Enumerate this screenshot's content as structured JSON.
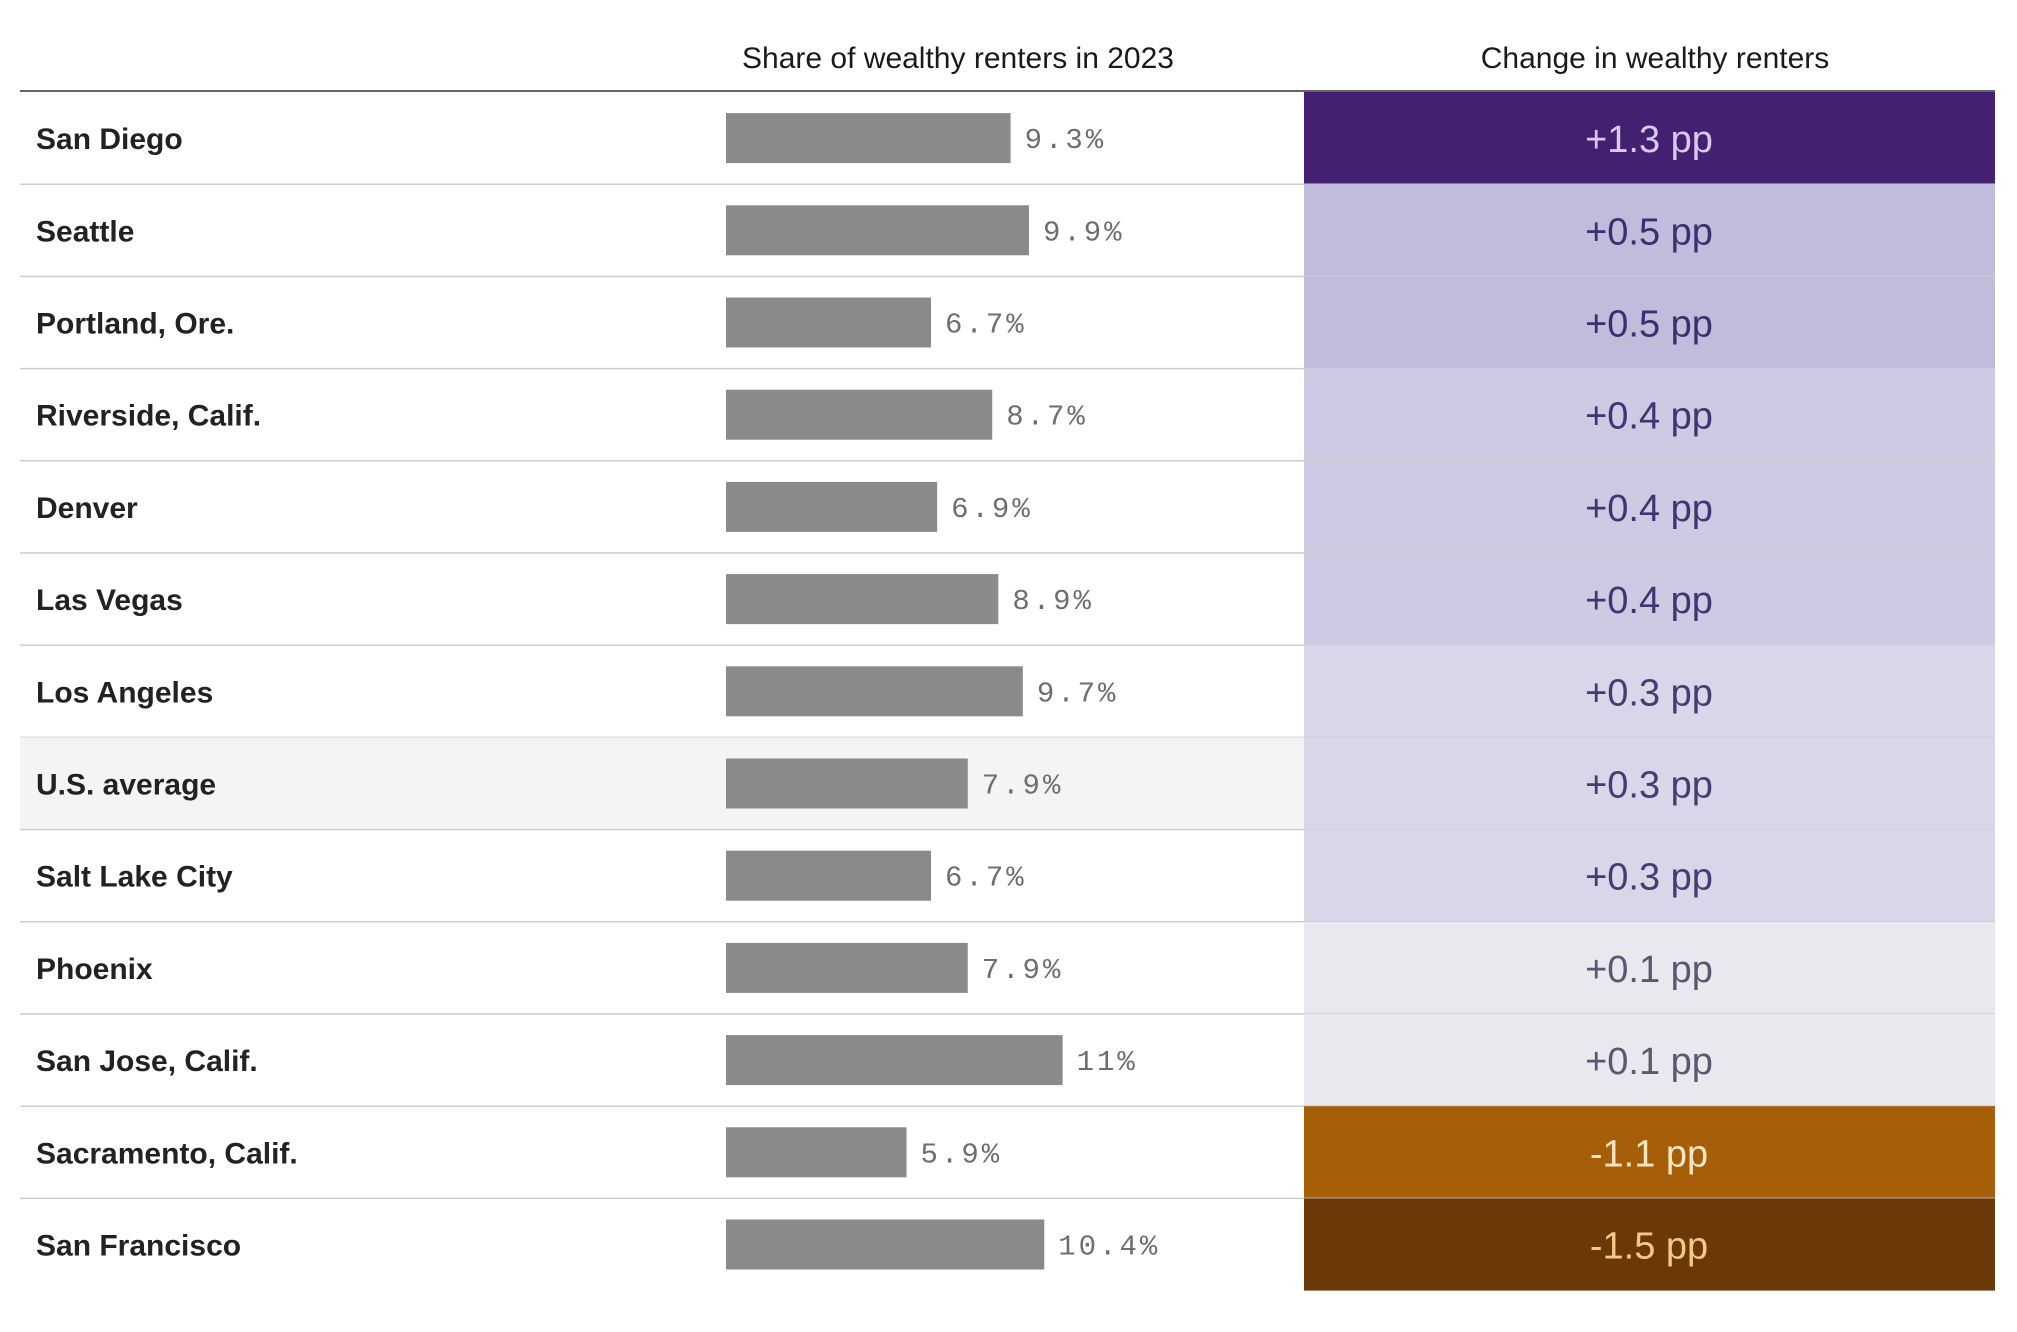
{
  "chart_data": {
    "type": "table",
    "columns": {
      "share_header": "Share of wealthy renters in 2023",
      "change_header": "Change in wealthy renters"
    },
    "value_max": 11,
    "rows": [
      {
        "city": "San Diego",
        "share": 9.3,
        "share_label": "9.3%",
        "change": 1.3,
        "change_label": "+1.3 pp",
        "highlight": false
      },
      {
        "city": "Seattle",
        "share": 9.9,
        "share_label": "9.9%",
        "change": 0.5,
        "change_label": "+0.5 pp",
        "highlight": false
      },
      {
        "city": "Portland, Ore.",
        "share": 6.7,
        "share_label": "6.7%",
        "change": 0.5,
        "change_label": "+0.5 pp",
        "highlight": false
      },
      {
        "city": "Riverside, Calif.",
        "share": 8.7,
        "share_label": "8.7%",
        "change": 0.4,
        "change_label": "+0.4 pp",
        "highlight": false
      },
      {
        "city": "Denver",
        "share": 6.9,
        "share_label": "6.9%",
        "change": 0.4,
        "change_label": "+0.4 pp",
        "highlight": false
      },
      {
        "city": "Las Vegas",
        "share": 8.9,
        "share_label": "8.9%",
        "change": 0.4,
        "change_label": "+0.4 pp",
        "highlight": false
      },
      {
        "city": "Los Angeles",
        "share": 9.7,
        "share_label": "9.7%",
        "change": 0.3,
        "change_label": "+0.3 pp",
        "highlight": false
      },
      {
        "city": "U.S. average",
        "share": 7.9,
        "share_label": "7.9%",
        "change": 0.3,
        "change_label": "+0.3 pp",
        "highlight": true
      },
      {
        "city": "Salt Lake City",
        "share": 6.7,
        "share_label": "6.7%",
        "change": 0.3,
        "change_label": "+0.3 pp",
        "highlight": false
      },
      {
        "city": "Phoenix",
        "share": 7.9,
        "share_label": "7.9%",
        "change": 0.1,
        "change_label": "+0.1 pp",
        "highlight": false
      },
      {
        "city": "San Jose, Calif.",
        "share": 11,
        "share_label": "11%",
        "change": 0.1,
        "change_label": "+0.1 pp",
        "highlight": false
      },
      {
        "city": "Sacramento, Calif.",
        "share": 5.9,
        "share_label": "5.9%",
        "change": -1.1,
        "change_label": "-1.1 pp",
        "highlight": false
      },
      {
        "city": "San Francisco",
        "share": 10.4,
        "share_label": "10.4%",
        "change": -1.5,
        "change_label": "-1.5 pp",
        "highlight": false
      }
    ]
  },
  "colors": {
    "bar": "#8a8a8a",
    "highlight_row": "#f4f4f4",
    "divider": "#cccccc",
    "header_rule": "#333333",
    "change_scale": {
      "1.3": {
        "bg": "#432070",
        "fg": "#d8c8f2"
      },
      "0.5": {
        "bg": "#c0bcdc",
        "fg": "#3a3070"
      },
      "0.4": {
        "bg": "#cdcae3",
        "fg": "#3d3670"
      },
      "0.3": {
        "bg": "#d8d6e8",
        "fg": "#433d72"
      },
      "0.1": {
        "bg": "#e8e8ee",
        "fg": "#5a5870"
      },
      "-1.1": {
        "bg": "#a65e08",
        "fg": "#fbe6c4"
      },
      "-1.5": {
        "bg": "#6b3808",
        "fg": "#f3c98a"
      }
    }
  }
}
